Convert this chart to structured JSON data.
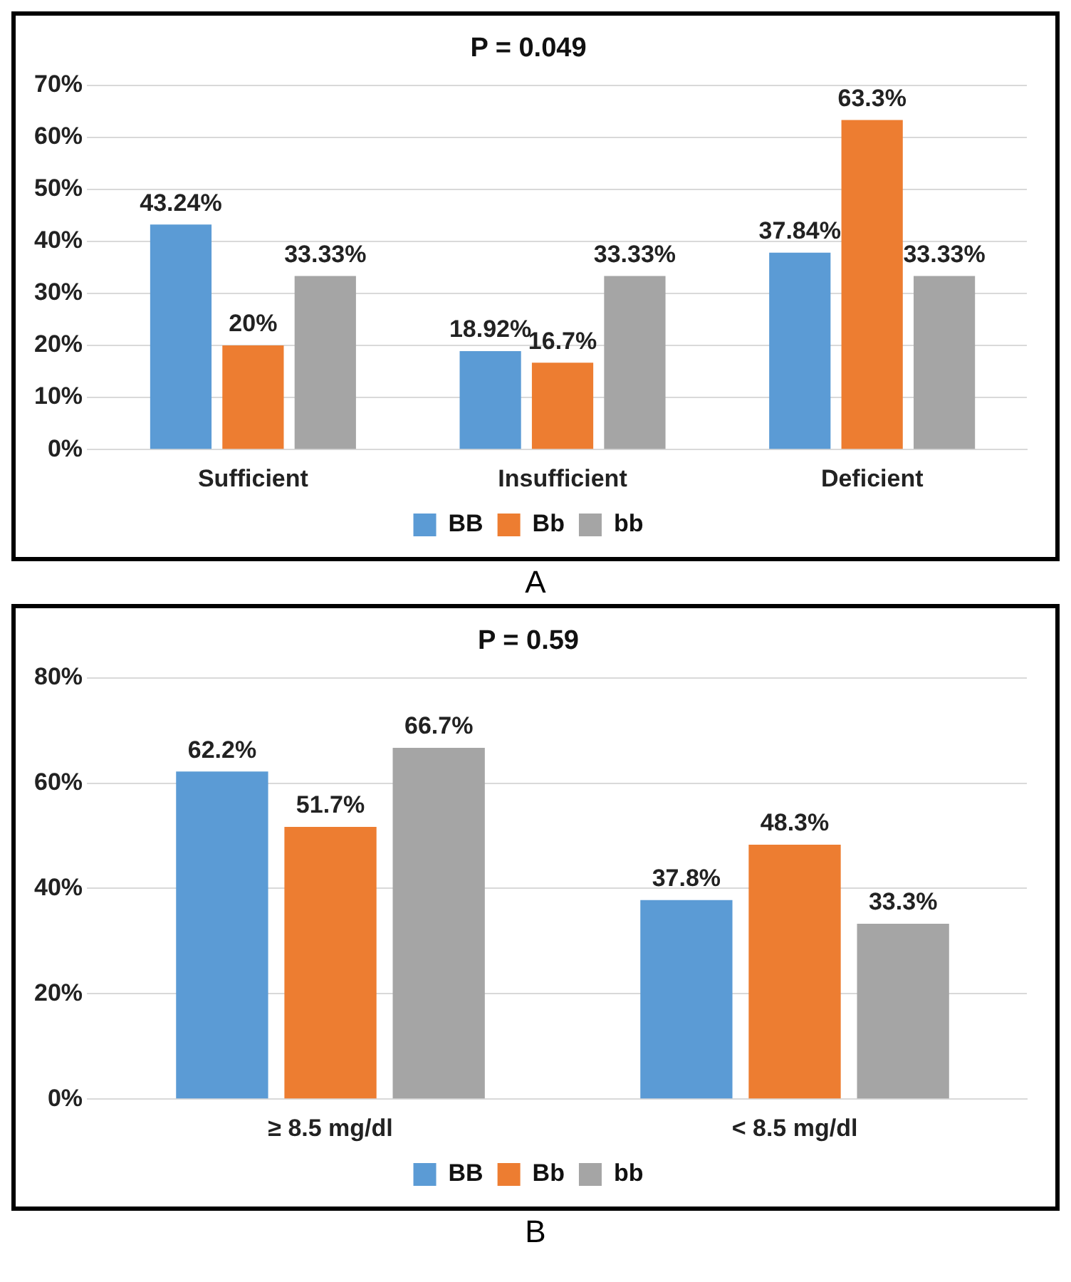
{
  "chart_data": [
    {
      "type": "bar",
      "title": "P = 0.049",
      "categories": [
        "Sufficient",
        "Insufficient",
        "Deficient"
      ],
      "series": [
        {
          "name": "BB",
          "color": "#5b9bd5",
          "values": [
            43.24,
            18.92,
            37.84
          ],
          "value_labels": [
            "43.24%",
            "18.92%",
            "37.84%"
          ]
        },
        {
          "name": "Bb",
          "color": "#ed7d31",
          "values": [
            20,
            16.7,
            63.3
          ],
          "value_labels": [
            "20%",
            "16.7%",
            "63.3%"
          ]
        },
        {
          "name": "bb",
          "color": "#a5a5a5",
          "values": [
            33.33,
            33.33,
            33.33
          ],
          "value_labels": [
            "33.33%",
            "33.33%",
            "33.33%"
          ]
        }
      ],
      "ylim": [
        0,
        70
      ],
      "yticks": [
        {
          "value": 0,
          "label": "0%"
        },
        {
          "value": 10,
          "label": "10%"
        },
        {
          "value": 20,
          "label": "20%"
        },
        {
          "value": 30,
          "label": "30%"
        },
        {
          "value": 40,
          "label": "40%"
        },
        {
          "value": 50,
          "label": "50%"
        },
        {
          "value": 60,
          "label": "60%"
        },
        {
          "value": 70,
          "label": "70%"
        }
      ],
      "grid": "y",
      "legend": "bottom",
      "annotations": [
        "A"
      ]
    },
    {
      "type": "bar",
      "title": "P = 0.59",
      "categories": [
        "≥ 8.5 mg/dl",
        "< 8.5 mg/dl"
      ],
      "series": [
        {
          "name": "BB",
          "color": "#5b9bd5",
          "values": [
            62.2,
            37.8
          ],
          "value_labels": [
            "62.2%",
            "37.8%"
          ]
        },
        {
          "name": "Bb",
          "color": "#ed7d31",
          "values": [
            51.7,
            48.3
          ],
          "value_labels": [
            "51.7%",
            "48.3%"
          ]
        },
        {
          "name": "bb",
          "color": "#a5a5a5",
          "values": [
            66.7,
            33.3
          ],
          "value_labels": [
            "66.7%",
            "33.3%"
          ]
        }
      ],
      "ylim": [
        0,
        80
      ],
      "yticks": [
        {
          "value": 0,
          "label": "0%"
        },
        {
          "value": 20,
          "label": "20%"
        },
        {
          "value": 40,
          "label": "40%"
        },
        {
          "value": 60,
          "label": "60%"
        },
        {
          "value": 80,
          "label": "80%"
        }
      ],
      "grid": "y",
      "legend": "bottom",
      "annotations": [
        "B"
      ]
    }
  ]
}
